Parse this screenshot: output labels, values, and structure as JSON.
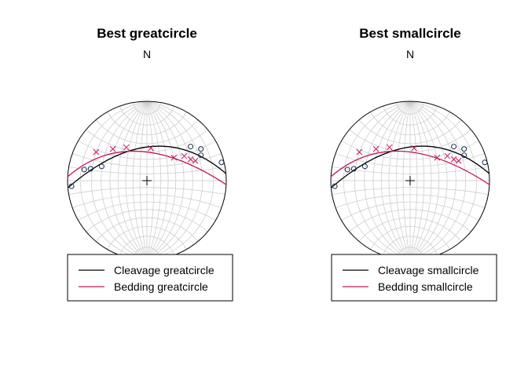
{
  "colors": {
    "cleavage": "#000000",
    "bedding": "#c2185b",
    "grid": "#c8c8c8",
    "cleavage_points": "#1a2a4a"
  },
  "chart_data": [
    {
      "type": "stereonet",
      "title": "Best greatcircle",
      "north_label": "N",
      "legend": [
        "Cleavage greatcircle",
        "Bedding greatcircle"
      ],
      "series": [
        {
          "name": "Cleavage greatcircle",
          "marker": "circle",
          "color": "cleavage",
          "points": [
            [
              -0.95,
              -0.07
            ],
            [
              -0.79,
              0.14
            ],
            [
              -0.71,
              0.15
            ],
            [
              -0.57,
              0.18
            ],
            [
              0.55,
              0.43
            ],
            [
              0.68,
              0.4
            ],
            [
              0.68,
              0.32
            ],
            [
              0.94,
              0.23
            ]
          ]
        },
        {
          "name": "Bedding greatcircle",
          "marker": "x",
          "color": "bedding",
          "points": [
            [
              -0.64,
              0.36
            ],
            [
              -0.43,
              0.4
            ],
            [
              -0.26,
              0.42
            ],
            [
              0.05,
              0.41
            ],
            [
              0.34,
              0.29
            ],
            [
              0.47,
              0.31
            ],
            [
              0.55,
              0.27
            ],
            [
              0.61,
              0.25
            ]
          ]
        }
      ],
      "great_circles": [
        {
          "name": "Cleavage greatcircle",
          "color": "cleavage",
          "apex": [
            0.05,
            0.43
          ]
        },
        {
          "name": "Bedding greatcircle",
          "color": "bedding",
          "apex": [
            -0.1,
            0.37
          ]
        }
      ]
    },
    {
      "type": "stereonet",
      "title": "Best smallcircle",
      "north_label": "N",
      "legend": [
        "Cleavage smallcircle",
        "Bedding smallcircle"
      ],
      "series": [
        {
          "name": "Cleavage smallcircle",
          "marker": "circle",
          "color": "cleavage",
          "points": [
            [
              -0.95,
              -0.07
            ],
            [
              -0.79,
              0.14
            ],
            [
              -0.71,
              0.15
            ],
            [
              -0.57,
              0.18
            ],
            [
              0.55,
              0.43
            ],
            [
              0.68,
              0.4
            ],
            [
              0.68,
              0.32
            ],
            [
              0.94,
              0.23
            ]
          ]
        },
        {
          "name": "Bedding smallcircle",
          "marker": "x",
          "color": "bedding",
          "points": [
            [
              -0.64,
              0.36
            ],
            [
              -0.43,
              0.4
            ],
            [
              -0.26,
              0.42
            ],
            [
              0.05,
              0.41
            ],
            [
              0.34,
              0.29
            ],
            [
              0.47,
              0.31
            ],
            [
              0.55,
              0.27
            ],
            [
              0.61,
              0.25
            ]
          ]
        }
      ],
      "great_circles": [
        {
          "name": "Cleavage smallcircle",
          "color": "cleavage",
          "apex": [
            0.05,
            0.43
          ]
        },
        {
          "name": "Bedding smallcircle",
          "color": "bedding",
          "apex": [
            -0.1,
            0.37
          ]
        }
      ]
    }
  ]
}
